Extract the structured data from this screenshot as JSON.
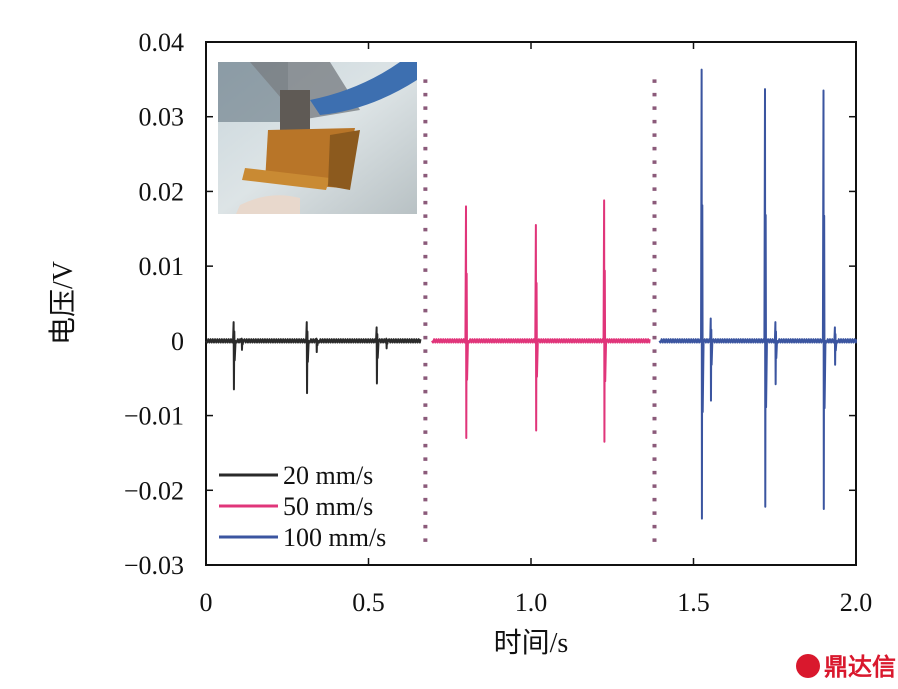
{
  "chart_data": {
    "type": "line",
    "xlabel": "时间/s",
    "ylabel": "电压/V",
    "xlim": [
      0,
      2.0
    ],
    "ylim": [
      -0.03,
      0.04
    ],
    "x_ticks": [
      0,
      0.5,
      1.0,
      1.5,
      2.0
    ],
    "x_tick_labels": [
      "0",
      "0.5",
      "1.0",
      "1.5",
      "2.0"
    ],
    "y_ticks": [
      -0.03,
      -0.02,
      -0.01,
      0,
      0.01,
      0.02,
      0.03,
      0.04
    ],
    "y_tick_labels": [
      "−0.03",
      "−0.02",
      "−0.01",
      "0",
      "0.01",
      "0.02",
      "0.03",
      "0.04"
    ],
    "grid": false,
    "legend_position": "bottom-left",
    "dividers_x": [
      0.675,
      1.38
    ],
    "divider_color": "#8b5a7a",
    "inset_photo": true,
    "series": [
      {
        "name": "20 mm/s",
        "color": "#2a2a2a",
        "range": [
          0.0,
          0.66
        ],
        "spikes": [
          {
            "x": 0.085,
            "max": 0.0025,
            "min": -0.0065,
            "after": 0.11,
            "after_max": 0.0003,
            "after_min": -0.0012
          },
          {
            "x": 0.31,
            "max": 0.0025,
            "min": -0.007,
            "after": 0.34,
            "after_max": 0.0003,
            "after_min": -0.0015
          },
          {
            "x": 0.525,
            "max": 0.0018,
            "min": -0.0057,
            "after": 0.555,
            "after_max": 0.0003,
            "after_min": -0.001
          }
        ]
      },
      {
        "name": "50 mm/s",
        "color": "#e0357a",
        "range": [
          0.695,
          1.365
        ],
        "spikes": [
          {
            "x": 0.8,
            "max": 0.018,
            "min": -0.013
          },
          {
            "x": 1.015,
            "max": 0.0155,
            "min": -0.012
          },
          {
            "x": 1.225,
            "max": 0.0188,
            "min": -0.0135
          }
        ]
      },
      {
        "name": "100 mm/s",
        "color": "#3b55a0",
        "range": [
          1.395,
          2.0
        ],
        "spikes": [
          {
            "x": 1.525,
            "max": 0.0363,
            "min": -0.0238,
            "after": 1.553,
            "after_max": 0.003,
            "after_min": -0.008
          },
          {
            "x": 1.72,
            "max": 0.0337,
            "min": -0.0222,
            "after": 1.752,
            "after_max": 0.0025,
            "after_min": -0.0058
          },
          {
            "x": 1.9,
            "max": 0.0335,
            "min": -0.0225,
            "after": 1.935,
            "after_max": 0.0018,
            "after_min": -0.0032
          }
        ]
      }
    ]
  },
  "watermark": {
    "text": "鼎达信",
    "color": "#d9182d"
  }
}
